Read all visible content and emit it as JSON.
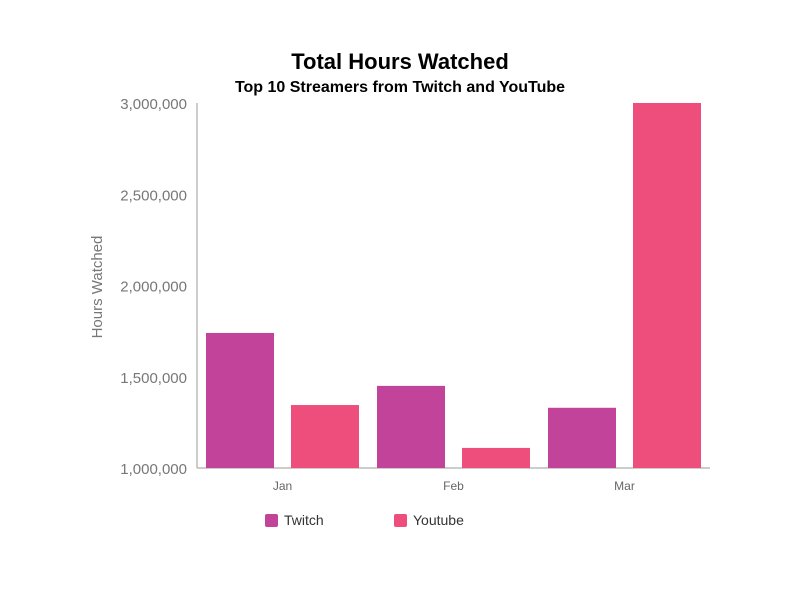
{
  "chart_data": {
    "type": "bar",
    "title": "Total Hours Watched",
    "subtitle": "Top 10 Streamers from Twitch and YouTube",
    "xlabel": "",
    "ylabel": "Hours Watched",
    "categories": [
      "Jan",
      "Feb",
      "Mar"
    ],
    "series": [
      {
        "name": "Twitch",
        "color": "#c2449a",
        "values": [
          1740000,
          1450000,
          1330000
        ]
      },
      {
        "name": "Youtube",
        "color": "#ee4e7b",
        "values": [
          1345000,
          1110000,
          3000000
        ]
      }
    ],
    "ylim": [
      1000000,
      3000000
    ],
    "yticks": [
      1000000,
      1500000,
      2000000,
      2500000,
      3000000
    ],
    "ytick_labels": [
      "1,000,000",
      "1,500,000",
      "2,000,000",
      "2,500,000",
      "3,000,000"
    ],
    "grid": false,
    "legend_position": "bottom"
  }
}
